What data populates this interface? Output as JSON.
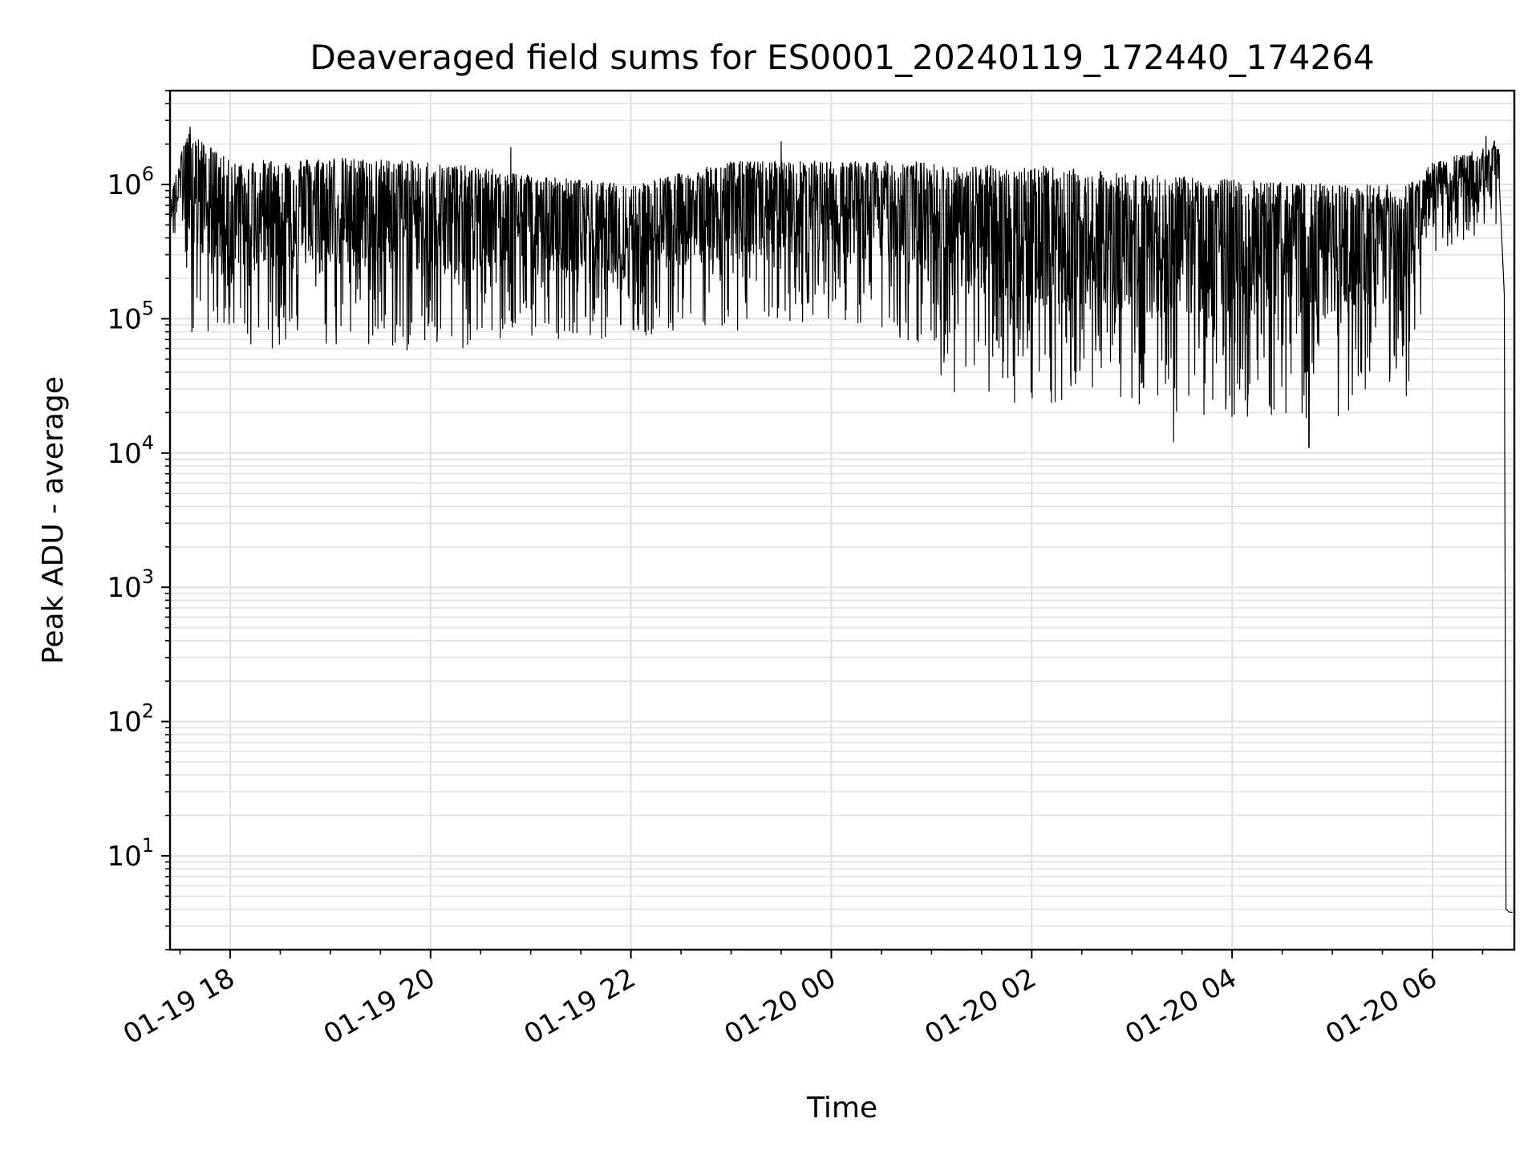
{
  "chart_data": {
    "type": "line",
    "title": "Deaveraged field sums for ES0001_20240119_172440_174264",
    "xlabel": "Time",
    "ylabel": "Peak ADU - average",
    "xscale": "time",
    "yscale": "log",
    "xlim": [
      "2024-01-19 17:24",
      "2024-01-20 06:49"
    ],
    "ylim": [
      2,
      5000000
    ],
    "grid": true,
    "legend": "none",
    "line_color": "#000000",
    "grid_color": "#e0e0e0",
    "x_ticks": [
      {
        "value": "2024-01-19 18:00",
        "label": "01-19 18"
      },
      {
        "value": "2024-01-19 20:00",
        "label": "01-19 20"
      },
      {
        "value": "2024-01-19 22:00",
        "label": "01-19 22"
      },
      {
        "value": "2024-01-20 00:00",
        "label": "01-20 00"
      },
      {
        "value": "2024-01-20 02:00",
        "label": "01-20 02"
      },
      {
        "value": "2024-01-20 04:00",
        "label": "01-20 04"
      },
      {
        "value": "2024-01-20 06:00",
        "label": "01-20 06"
      }
    ],
    "y_ticks": [
      {
        "value": 10,
        "base": "10",
        "exp": "1"
      },
      {
        "value": 100,
        "base": "10",
        "exp": "2"
      },
      {
        "value": 1000,
        "base": "10",
        "exp": "3"
      },
      {
        "value": 10000,
        "base": "10",
        "exp": "4"
      },
      {
        "value": 100000,
        "base": "10",
        "exp": "5"
      },
      {
        "value": 1000000,
        "base": "10",
        "exp": "6"
      }
    ],
    "envelope": [
      {
        "t": "2024-01-19 17:24",
        "hi": 700000,
        "lo": 400000
      },
      {
        "t": "2024-01-19 17:30",
        "hi": 2000000,
        "lo": 400000
      },
      {
        "t": "2024-01-19 17:36",
        "hi": 2500000,
        "lo": 80000
      },
      {
        "t": "2024-01-19 18:00",
        "hi": 1500000,
        "lo": 60000
      },
      {
        "t": "2024-01-19 19:00",
        "hi": 1600000,
        "lo": 60000
      },
      {
        "t": "2024-01-19 20:00",
        "hi": 1500000,
        "lo": 55000
      },
      {
        "t": "2024-01-19 21:00",
        "hi": 1200000,
        "lo": 70000
      },
      {
        "t": "2024-01-19 22:00",
        "hi": 1000000,
        "lo": 70000
      },
      {
        "t": "2024-01-19 23:00",
        "hi": 1500000,
        "lo": 80000
      },
      {
        "t": "2024-01-20 00:00",
        "hi": 1500000,
        "lo": 100000
      },
      {
        "t": "2024-01-20 00:50",
        "hi": 1500000,
        "lo": 60000
      },
      {
        "t": "2024-01-20 01:10",
        "hi": 1400000,
        "lo": 28000
      },
      {
        "t": "2024-01-20 02:00",
        "hi": 1400000,
        "lo": 22000
      },
      {
        "t": "2024-01-20 03:00",
        "hi": 1200000,
        "lo": 20000
      },
      {
        "t": "2024-01-20 04:00",
        "hi": 1100000,
        "lo": 18000
      },
      {
        "t": "2024-01-20 05:00",
        "hi": 1000000,
        "lo": 18000
      },
      {
        "t": "2024-01-20 05:45",
        "hi": 1000000,
        "lo": 25000
      },
      {
        "t": "2024-01-20 06:00",
        "hi": 1500000,
        "lo": 300000
      },
      {
        "t": "2024-01-20 06:40",
        "hi": 2000000,
        "lo": 500000
      }
    ],
    "spikes": [
      {
        "t": "2024-01-19 17:36",
        "y": 2700000
      },
      {
        "t": "2024-01-19 17:38",
        "y": 85000
      },
      {
        "t": "2024-01-19 20:48",
        "y": 1900000
      },
      {
        "t": "2024-01-19 23:30",
        "y": 2100000
      },
      {
        "t": "2024-01-20 00:41",
        "y": 80000
      },
      {
        "t": "2024-01-20 03:25",
        "y": 12000
      },
      {
        "t": "2024-01-20 04:46",
        "y": 11000
      },
      {
        "t": "2024-01-20 06:32",
        "y": 2300000
      },
      {
        "t": "2024-01-20 06:37",
        "y": 2100000
      }
    ],
    "tail": [
      {
        "t": "2024-01-20 06:40",
        "y": 1000000
      },
      {
        "t": "2024-01-20 06:43",
        "y": 150000
      },
      {
        "t": "2024-01-20 06:44",
        "y": 4
      },
      {
        "t": "2024-01-20 06:46",
        "y": 3.8
      },
      {
        "t": "2024-01-20 06:48",
        "y": 3.8
      }
    ]
  }
}
